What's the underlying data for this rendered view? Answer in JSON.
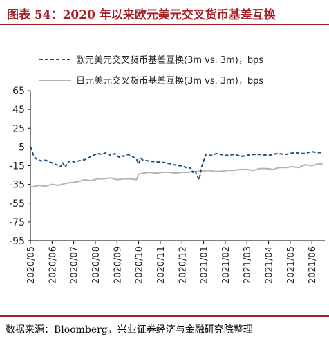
{
  "title": "图表 54：2020 年以来欧元美元交叉货币基差互换",
  "source": "数据来源：Bloomberg，兴业证券经济与金融研究院整理",
  "colors": {
    "title": "#a31f24",
    "eur": "#1f4e79",
    "jpy": "#b3b3b3",
    "axis": "#000000"
  },
  "chart_data": {
    "type": "line",
    "ylim": [
      -95,
      65
    ],
    "y_ticks": [
      "65",
      "45",
      "25",
      "5",
      "-15",
      "-35",
      "-55",
      "-75",
      "-95"
    ],
    "x_ticks": [
      "2020/05",
      "2020/06",
      "2020/07",
      "2020/08",
      "2020/09",
      "2020/10",
      "2020/11",
      "2020/12",
      "2021/01",
      "2021/02",
      "2021/03",
      "2021/04",
      "2021/05",
      "2021/06"
    ],
    "xlim": [
      0,
      13.6
    ],
    "grid": false,
    "legend_position": "top",
    "series": [
      {
        "name": "欧元美元交叉货币基差互换(3m vs. 3m)，bps",
        "style": "dashed",
        "x": [
          0,
          0.05,
          0.15,
          0.3,
          0.5,
          0.7,
          0.9,
          1.0,
          1.2,
          1.4,
          1.5,
          1.6,
          1.75,
          1.9,
          2.0,
          2.2,
          2.4,
          2.6,
          2.8,
          3.0,
          3.1,
          3.3,
          3.5,
          3.7,
          3.9,
          4.1,
          4.2,
          4.3,
          4.5,
          4.7,
          4.9,
          5.0,
          5.1,
          5.2,
          5.5,
          5.8,
          6.0,
          6.3,
          6.6,
          6.9,
          7.1,
          7.3,
          7.4,
          7.5,
          7.6,
          7.7,
          7.8,
          7.9,
          8.0,
          8.1,
          8.3,
          8.6,
          9.0,
          9.4,
          9.8,
          10.2,
          10.6,
          11.0,
          11.4,
          11.8,
          12.2,
          12.6,
          13.0,
          13.3,
          13.5
        ],
        "y": [
          5,
          3,
          -5,
          -8,
          -10,
          -9,
          -11,
          -12,
          -14,
          -16,
          -12,
          -17,
          -11,
          -9,
          -11,
          -10,
          -9,
          -8,
          -5,
          -3,
          -2,
          -3,
          -1,
          -4,
          -2,
          -6,
          -4,
          -5,
          -3,
          -5,
          -8,
          -13,
          -7,
          -9,
          -10,
          -11,
          -11,
          -12,
          -14,
          -15,
          -16,
          -18,
          -17,
          -22,
          -20,
          -26,
          -30,
          -17,
          -10,
          -3,
          -4,
          -2,
          -4,
          -3,
          -5,
          -3,
          -3,
          -4,
          -2,
          -3,
          -1,
          -2,
          0,
          -1,
          -1
        ]
      },
      {
        "name": "日元美元交叉货币基差互换(3m vs. 3m)，bps",
        "style": "solid",
        "x": [
          0,
          0.2,
          0.4,
          0.7,
          1.0,
          1.3,
          1.6,
          1.9,
          2.2,
          2.5,
          2.8,
          3.1,
          3.4,
          3.7,
          4.0,
          4.3,
          4.6,
          4.9,
          5.0,
          5.2,
          5.5,
          5.8,
          6.1,
          6.4,
          6.7,
          7.0,
          7.3,
          7.6,
          7.9,
          8.2,
          8.5,
          8.8,
          9.1,
          9.4,
          9.7,
          10.0,
          10.3,
          10.6,
          10.9,
          11.2,
          11.5,
          11.8,
          12.1,
          12.4,
          12.7,
          13.0,
          13.3,
          13.5
        ],
        "y": [
          -38,
          -37,
          -36,
          -37,
          -35,
          -36,
          -34,
          -33,
          -32,
          -30,
          -31,
          -29,
          -29,
          -28,
          -30,
          -29,
          -29,
          -30,
          -24,
          -23,
          -22,
          -23,
          -22,
          -22,
          -23,
          -22,
          -22,
          -21,
          -21,
          -20,
          -21,
          -21,
          -20,
          -20,
          -19,
          -19,
          -20,
          -18,
          -18,
          -19,
          -17,
          -17,
          -16,
          -17,
          -14,
          -15,
          -13,
          -13
        ]
      }
    ]
  }
}
